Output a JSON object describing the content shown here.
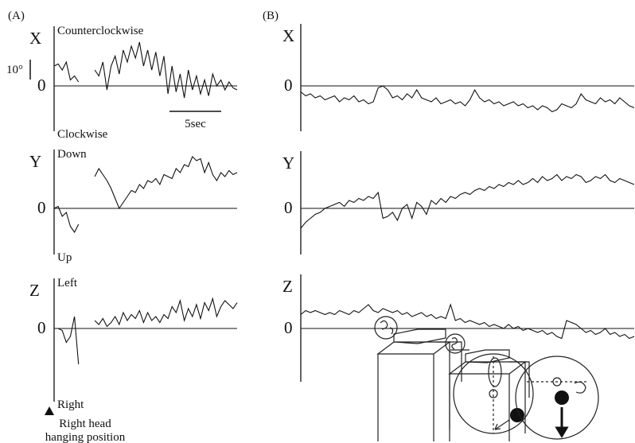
{
  "panels": [
    {
      "label": "(A)",
      "scale_bar": {
        "value": 10,
        "label": "10°"
      },
      "time_bar": {
        "value": 5,
        "label": "5sec"
      },
      "traces": [
        {
          "axis": "X",
          "top": "Counterclockwise",
          "bottom": "Clockwise",
          "zero": 0,
          "values": [
            10,
            11,
            8,
            12,
            3,
            5,
            2,
            null,
            null,
            null,
            8,
            5,
            12,
            -2,
            10,
            15,
            6,
            18,
            12,
            20,
            14,
            22,
            10,
            18,
            8,
            17,
            5,
            15,
            -4,
            10,
            -3,
            6,
            -6,
            8,
            -2,
            5,
            -4,
            3,
            -5,
            6,
            0,
            3,
            -2,
            2,
            -1,
            -2
          ]
        },
        {
          "axis": "Y",
          "top": "Down",
          "bottom": "Up",
          "zero": 0,
          "values": [
            0,
            1,
            -4,
            -2,
            -9,
            -12,
            -8,
            null,
            null,
            null,
            16,
            20,
            17,
            14,
            10,
            5,
            0,
            3,
            6,
            9,
            8,
            12,
            10,
            14,
            13,
            15,
            12,
            17,
            16,
            15,
            20,
            18,
            22,
            21,
            26,
            24,
            25,
            18,
            23,
            17,
            14,
            18,
            16,
            19,
            17,
            18
          ]
        },
        {
          "axis": "Z",
          "top": "Left",
          "bottom": "Right",
          "zero": 0,
          "values": [
            0,
            0,
            -1,
            -7,
            -4,
            6,
            -18,
            null,
            null,
            null,
            4,
            2,
            5,
            1,
            3,
            6,
            2,
            8,
            4,
            7,
            5,
            9,
            3,
            8,
            4,
            6,
            3,
            7,
            5,
            11,
            8,
            14,
            4,
            10,
            6,
            12,
            5,
            13,
            9,
            15,
            6,
            11,
            14,
            12,
            10,
            13
          ]
        }
      ],
      "caption": [
        "Right head",
        "hanging position"
      ]
    },
    {
      "label": "(B)",
      "traces": [
        {
          "axis": "X",
          "zero": 0,
          "values": [
            -3,
            -5,
            -4,
            -6,
            -5,
            -7,
            -6,
            -5,
            -8,
            -6,
            -7,
            -5,
            -8,
            -7,
            -9,
            -8,
            -1,
            0,
            -2,
            -6,
            -5,
            -7,
            -4,
            -6,
            -2,
            -6,
            -7,
            -8,
            -6,
            -9,
            -8,
            -7,
            -9,
            -8,
            -10,
            -7,
            -2,
            -6,
            -8,
            -7,
            -9,
            -8,
            -10,
            -9,
            -8,
            -10,
            -9,
            -11,
            -10,
            -12,
            -10,
            -11,
            -13,
            -12,
            -9,
            -10,
            -11,
            -9,
            -4,
            -7,
            -8,
            -9,
            -6,
            -8,
            -7,
            -9,
            -6,
            -8,
            -10,
            -11
          ]
        },
        {
          "axis": "Y",
          "zero": 0,
          "values": [
            -10,
            -7,
            -5,
            -3,
            -2,
            0,
            1,
            2,
            3,
            1,
            4,
            3,
            5,
            4,
            6,
            5,
            8,
            -5,
            -4,
            -2,
            -6,
            0,
            2,
            -5,
            3,
            1,
            -3,
            4,
            2,
            5,
            3,
            6,
            5,
            7,
            8,
            7,
            9,
            10,
            9,
            11,
            10,
            12,
            11,
            13,
            12,
            14,
            12,
            13,
            15,
            13,
            16,
            14,
            15,
            17,
            14,
            16,
            15,
            17,
            16,
            13,
            14,
            16,
            15,
            17,
            14,
            13,
            15,
            14,
            13,
            12
          ]
        },
        {
          "axis": "Z",
          "zero": 0,
          "values": [
            7,
            9,
            8,
            9,
            8,
            7,
            8,
            7,
            9,
            8,
            7,
            9,
            8,
            10,
            12,
            9,
            8,
            10,
            9,
            8,
            9,
            7,
            8,
            6,
            7,
            8,
            6,
            7,
            5,
            6,
            5,
            12,
            4,
            5,
            3,
            4,
            3,
            2,
            3,
            1,
            2,
            1,
            0,
            2,
            0,
            1,
            -1,
            0,
            -1,
            -2,
            -1,
            -3,
            -2,
            -4,
            -5,
            4,
            3,
            2,
            0,
            -2,
            -1,
            -3,
            -2,
            0,
            -3,
            -2,
            -4,
            -3,
            -5,
            -4
          ]
        }
      ]
    }
  ]
}
